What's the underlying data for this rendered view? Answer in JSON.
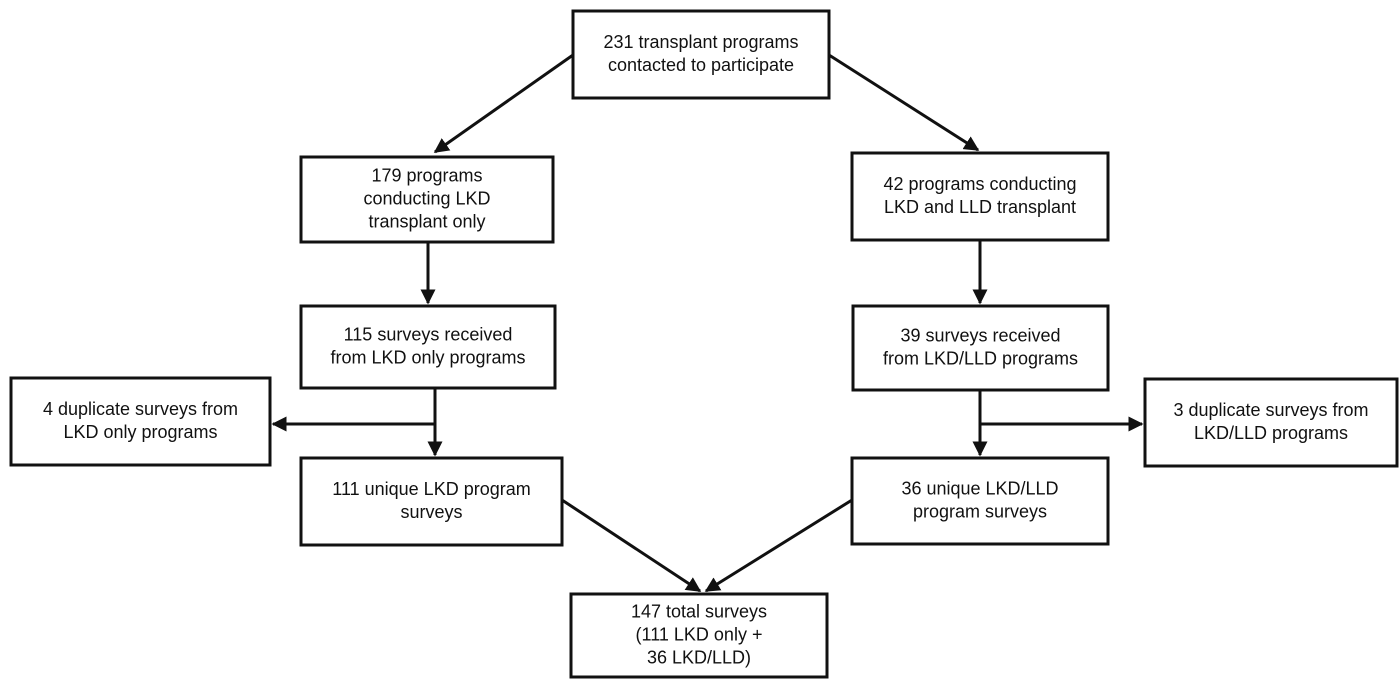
{
  "nodes": [
    {
      "lines": [
        "231 transplant programs",
        "contacted to participate"
      ]
    },
    {
      "lines": [
        "179 programs",
        "conducting LKD",
        "transplant only"
      ]
    },
    {
      "lines": [
        "42 programs conducting",
        "LKD and LLD transplant"
      ]
    },
    {
      "lines": [
        "115 surveys received",
        "from LKD only programs"
      ]
    },
    {
      "lines": [
        "39 surveys received",
        "from LKD/LLD programs"
      ]
    },
    {
      "lines": [
        "4 duplicate surveys from",
        "LKD only programs"
      ]
    },
    {
      "lines": [
        "3 duplicate surveys from",
        "LKD/LLD programs"
      ]
    },
    {
      "lines": [
        "111 unique LKD program",
        "surveys"
      ]
    },
    {
      "lines": [
        "36 unique LKD/LLD",
        "program surveys"
      ]
    },
    {
      "lines": [
        "147 total surveys",
        "(111 LKD only +",
        "36 LKD/LLD)"
      ]
    }
  ]
}
